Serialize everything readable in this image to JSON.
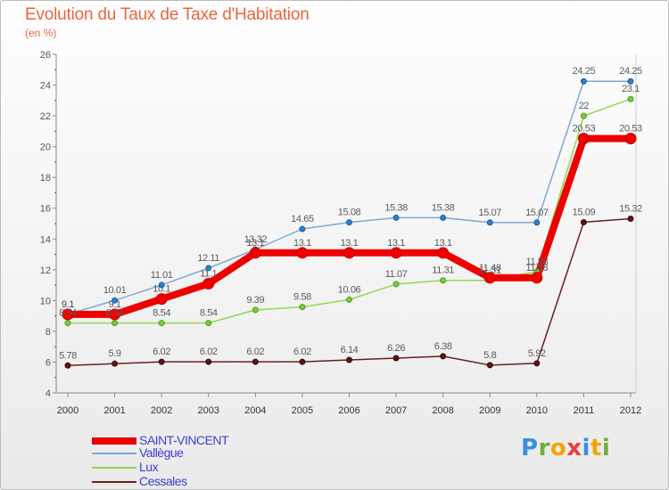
{
  "title": "Evolution du Taux de Taxe d'Habitation",
  "subtitle": "(en %)",
  "logo_letters": [
    {
      "ch": "P",
      "color": "#3b8ee0"
    },
    {
      "ch": "r",
      "color": "#6fae3a"
    },
    {
      "ch": "o",
      "color": "#f2a400"
    },
    {
      "ch": "x",
      "color": "#e8403a"
    },
    {
      "ch": "i",
      "color": "#3b8ee0"
    },
    {
      "ch": "t",
      "color": "#f2a400"
    },
    {
      "ch": "i",
      "color": "#6fae3a"
    }
  ],
  "chart_data": {
    "type": "line",
    "title": "Evolution du Taux de Taxe d'Habitation",
    "subtitle": "(en %)",
    "x": [
      "2000",
      "2001",
      "2002",
      "2003",
      "2004",
      "2005",
      "2006",
      "2007",
      "2008",
      "2009",
      "2010",
      "2011",
      "2012"
    ],
    "ylim": [
      4,
      26
    ],
    "yticks": [
      4,
      6,
      8,
      10,
      12,
      14,
      16,
      18,
      20,
      22,
      24,
      26
    ],
    "grid": false,
    "legend_position": "bottom-left",
    "series": [
      {
        "name": "Cessales",
        "color": "#6b1f1f",
        "values": [
          5.78,
          5.9,
          6.02,
          6.02,
          6.02,
          6.02,
          6.14,
          6.26,
          6.38,
          5.8,
          5.92,
          15.09,
          15.32
        ],
        "labels": [
          "5.78",
          "5.9",
          "6.02",
          "6.02",
          "6.02",
          "6.02",
          "6.14",
          "6.26",
          "6.38",
          "5.8",
          "5.92",
          "15.09",
          "15.32"
        ]
      },
      {
        "name": "Lux",
        "color": "#90d84e",
        "values": [
          8.54,
          8.54,
          8.54,
          8.54,
          9.39,
          9.58,
          10.06,
          11.07,
          11.31,
          11.31,
          11.88,
          22,
          23.1
        ],
        "labels": [
          "8.54",
          "8.54",
          "8.54",
          "8.54",
          "9.39",
          "9.58",
          "10.06",
          "11.07",
          "11.31",
          "11.31",
          "11.88",
          "22",
          "23.1"
        ]
      },
      {
        "name": "Vallègue",
        "color": "#7aa8d6",
        "values": [
          9.1,
          10.01,
          11.01,
          12.11,
          13.32,
          14.65,
          15.08,
          15.38,
          15.38,
          15.07,
          15.07,
          24.25,
          24.25
        ],
        "labels": [
          "9.1",
          "10.01",
          "11.01",
          "12.11",
          "13.32",
          "14.65",
          "15.08",
          "15.38",
          "15.38",
          "15.07",
          "15.07",
          "24.25",
          "24.25"
        ]
      },
      {
        "name": "SAINT-VINCENT",
        "color": "#ee0000",
        "values": [
          9.1,
          9.1,
          10.1,
          11.1,
          13.1,
          13.1,
          13.1,
          13.1,
          13.1,
          11.48,
          11.48,
          20.53,
          20.53
        ],
        "labels": [
          "9.1",
          "9.1",
          "10.1",
          "11.1",
          "13.1",
          "13.1",
          "13.1",
          "13.1",
          "13.1",
          "11.48",
          "11.48",
          "20.53",
          "20.53"
        ]
      }
    ],
    "legend": [
      "SAINT-VINCENT",
      "Vallègue",
      "Lux",
      "Cessales"
    ]
  }
}
